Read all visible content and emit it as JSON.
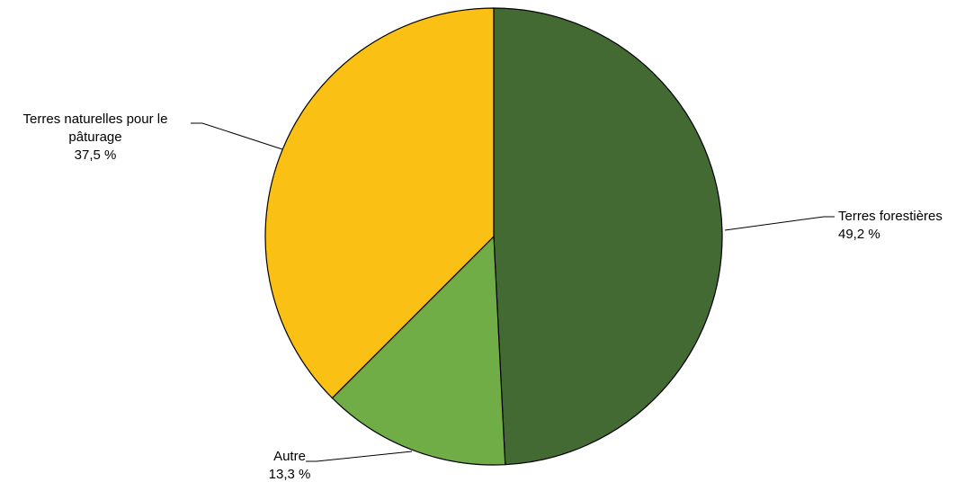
{
  "chart_data": {
    "type": "pie",
    "title": "",
    "slices": [
      {
        "label_lines": [
          "Terres forestières"
        ],
        "value": 49.2,
        "value_label": "49,2 %",
        "color": "#446a33"
      },
      {
        "label_lines": [
          "Autre"
        ],
        "value": 13.3,
        "value_label": "13,3 %",
        "color": "#70ad47"
      },
      {
        "label_lines": [
          "Terres naturelles pour le",
          "pâturage"
        ],
        "value": 37.5,
        "value_label": "37,5 %",
        "color": "#fac013"
      }
    ],
    "start_angle": "12 o'clock",
    "direction": "clockwise",
    "border_color": "#000000"
  }
}
